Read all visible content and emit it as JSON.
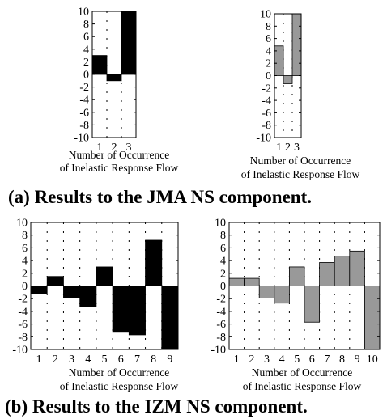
{
  "chart_data": [
    {
      "type": "bar",
      "categories": [
        "1",
        "2",
        "3"
      ],
      "series": [
        {
          "values": [
            3,
            -1,
            10
          ],
          "color": "#000000"
        }
      ],
      "xlabel": [
        "Number of Occurrence",
        "of Inelastic Response Flow"
      ],
      "ylim": [
        -10,
        10
      ],
      "yticks": [
        "10",
        "8",
        "6",
        "4",
        "2",
        "0",
        "-2",
        "-4",
        "-6",
        "-8",
        "-10"
      ],
      "grid": true
    },
    {
      "type": "bar",
      "categories": [
        "1",
        "2",
        "3"
      ],
      "series": [
        {
          "values": [
            4.8,
            -1.3,
            10
          ],
          "color": "#999999"
        }
      ],
      "xlabel": [
        "Number of Occurrence",
        "of Inelastic Response Flow"
      ],
      "ylim": [
        -10,
        10
      ],
      "yticks": [
        "10",
        "8",
        "6",
        "4",
        "2",
        "0",
        "-2",
        "-4",
        "-6",
        "-8",
        "-10"
      ],
      "grid": true
    },
    {
      "type": "bar",
      "categories": [
        "1",
        "2",
        "3",
        "4",
        "5",
        "6",
        "7",
        "8",
        "9"
      ],
      "series": [
        {
          "values": [
            -1.2,
            1.5,
            -1.8,
            -3.3,
            3,
            -7.3,
            -7.7,
            7.2,
            -10
          ],
          "color": "#000000"
        }
      ],
      "xlabel": [
        "Number of Occurrence",
        "of Inelastic Response Flow"
      ],
      "ylim": [
        -10,
        10
      ],
      "yticks": [
        "10",
        "8",
        "6",
        "4",
        "2",
        "0",
        "-2",
        "-4",
        "-6",
        "-8",
        "-10"
      ],
      "grid": true
    },
    {
      "type": "bar",
      "categories": [
        "1",
        "2",
        "3",
        "4",
        "5",
        "6",
        "7",
        "8",
        "9",
        "10"
      ],
      "series": [
        {
          "values": [
            1.2,
            1.2,
            -1.9,
            -2.7,
            3,
            -5.7,
            3.7,
            4.7,
            5.5,
            -10
          ],
          "color": "#999999"
        }
      ],
      "xlabel": [
        "Number of Occurrence",
        "of Inelastic Response Flow"
      ],
      "ylim": [
        -10,
        10
      ],
      "yticks": [
        "10",
        "8",
        "6",
        "4",
        "2",
        "0",
        "-2",
        "-4",
        "-6",
        "-8",
        "-10"
      ],
      "grid": true
    }
  ],
  "captions": {
    "a": "(a) Results to the JMA NS component.",
    "b": "(b) Results to the IZM NS component."
  }
}
